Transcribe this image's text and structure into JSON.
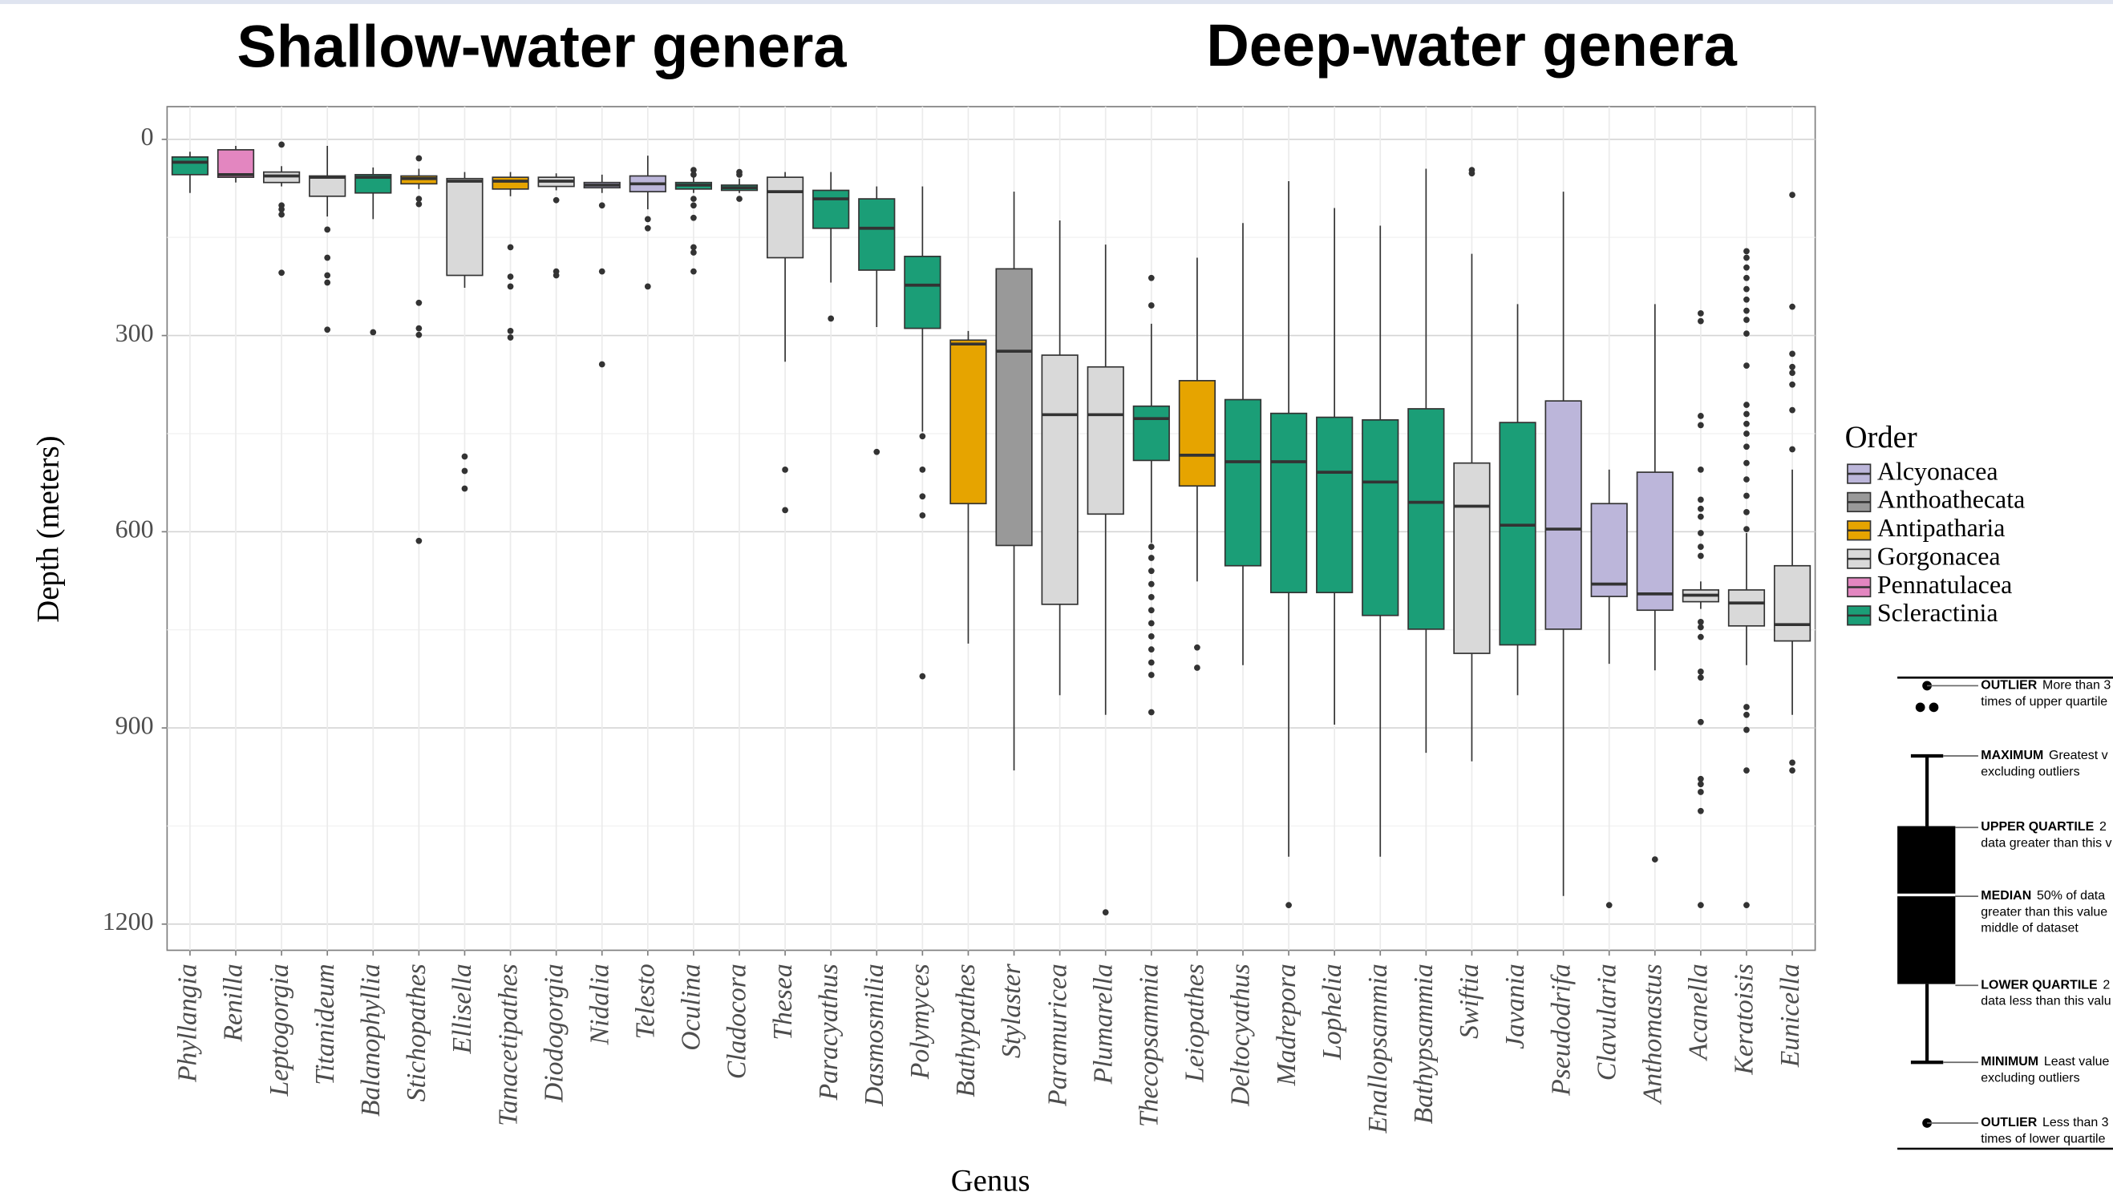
{
  "chart_data": {
    "type": "box",
    "annotations": [
      "Shallow-water genera",
      "Deep-water genera"
    ],
    "xlabel": "Genus",
    "ylabel": "Depth (meters)",
    "ylim": [
      -50,
      1240
    ],
    "y_reversed": true,
    "yticks": [
      0,
      300,
      600,
      900,
      1200
    ],
    "grid": true,
    "legend_title": "Order",
    "categories": [
      "Phyllangia",
      "Renilla",
      "Leptogorgia",
      "Titanideum",
      "Balanophyllia",
      "Stichopathes",
      "Ellisella",
      "Tanacetipathes",
      "Diodogorgia",
      "Nidalia",
      "Telesto",
      "Oculina",
      "Cladocora",
      "Thesea",
      "Paracyathus",
      "Dasmosmilia",
      "Polymyces",
      "Bathypathes",
      "Stylaster",
      "Paramuricea",
      "Plumarella",
      "Thecopsammia",
      "Leiopathes",
      "Deltocyathus",
      "Madrepora",
      "Lophelia",
      "Enallopsammia",
      "Bathypsammia",
      "Swiftia",
      "Javania",
      "Pseudodrifa",
      "Clavularia",
      "Anthomastus",
      "Acanella",
      "Keratoisis",
      "Eunicella"
    ],
    "series": [
      {
        "name": "Alcyonacea",
        "color": "#bcb6da",
        "values": [
          null,
          null,
          null,
          null,
          null,
          null,
          null,
          null,
          null,
          {
            "min": 54,
            "q1": 66,
            "median": 70,
            "q3": 74,
            "max": 82,
            "outliers": [
              101,
              202,
              344
            ]
          },
          {
            "min": 25,
            "q1": 56,
            "median": 68,
            "q3": 80,
            "max": 107,
            "outliers": [
              122,
              136,
              225
            ]
          },
          null,
          null,
          null,
          null,
          null,
          null,
          null,
          null,
          null,
          null,
          null,
          null,
          null,
          null,
          null,
          null,
          null,
          null,
          null,
          {
            "min": 80,
            "q1": 400,
            "median": 596,
            "q3": 749,
            "max": 1157,
            "outliers": []
          },
          {
            "min": 505,
            "q1": 557,
            "median": 680,
            "q3": 699,
            "max": 802,
            "outliers": [
              1171
            ]
          },
          {
            "min": 252,
            "q1": 509,
            "median": 695,
            "q3": 720,
            "max": 812,
            "outliers": [
              1101
            ]
          },
          null,
          null,
          null
        ]
      },
      {
        "name": "Anthoathecata",
        "color": "#999999",
        "values": [
          null,
          null,
          null,
          null,
          null,
          null,
          null,
          null,
          null,
          null,
          null,
          null,
          null,
          null,
          null,
          null,
          null,
          null,
          {
            "min": 80,
            "q1": 198,
            "median": 324,
            "q3": 621,
            "max": 965,
            "outliers": []
          },
          null,
          null,
          null,
          null,
          null,
          null,
          null,
          null,
          null,
          null,
          null,
          null,
          null,
          null,
          null,
          null,
          null
        ]
      },
      {
        "name": "Antipatharia",
        "color": "#e6a400",
        "values": [
          null,
          null,
          null,
          null,
          null,
          {
            "min": 45,
            "q1": 56,
            "median": 60,
            "q3": 68,
            "max": 76,
            "outliers": [
              29,
              91,
              99,
              250,
              289,
              299,
              614
            ]
          },
          null,
          {
            "min": 50,
            "q1": 58,
            "median": 64,
            "q3": 76,
            "max": 87,
            "outliers": [
              165,
              210,
              225,
              293,
              303
            ]
          },
          null,
          null,
          null,
          null,
          null,
          null,
          null,
          null,
          null,
          {
            "min": 293,
            "q1": 307,
            "median": 313,
            "q3": 557,
            "max": 771,
            "outliers": []
          },
          null,
          null,
          null,
          null,
          {
            "min": 181,
            "q1": 369,
            "median": 483,
            "q3": 530,
            "max": 676,
            "outliers": [
              777,
              808
            ]
          },
          null,
          null,
          null,
          null,
          null,
          null,
          null,
          null,
          null,
          null,
          null,
          null,
          null
        ]
      },
      {
        "name": "Gorgonacea",
        "color": "#d9d9d9",
        "values": [
          null,
          null,
          {
            "min": 41,
            "q1": 50,
            "median": 56,
            "q3": 66,
            "max": 72,
            "outliers": [
              8,
              101,
              107,
              115,
              204
            ]
          },
          {
            "min": 10,
            "q1": 56,
            "median": 58,
            "q3": 87,
            "max": 118,
            "outliers": [
              138,
              181,
              208,
              219,
              291
            ]
          },
          null,
          null,
          {
            "min": 50,
            "q1": 60,
            "median": 64,
            "q3": 208,
            "max": 227,
            "outliers": [
              485,
              507,
              534
            ]
          },
          null,
          {
            "min": 52,
            "q1": 58,
            "median": 64,
            "q3": 72,
            "max": 78,
            "outliers": [
              93,
              202,
              208
            ]
          },
          null,
          null,
          null,
          null,
          {
            "min": 50,
            "q1": 58,
            "median": 80,
            "q3": 181,
            "max": 340,
            "outliers": [
              505,
              567
            ]
          },
          null,
          null,
          null,
          null,
          null,
          {
            "min": 124,
            "q1": 330,
            "median": 421,
            "q3": 711,
            "max": 850,
            "outliers": []
          },
          {
            "min": 161,
            "q1": 348,
            "median": 421,
            "q3": 573,
            "max": 880,
            "outliers": [
              1182
            ]
          },
          null,
          null,
          null,
          null,
          null,
          null,
          null,
          {
            "min": 175,
            "q1": 495,
            "median": 561,
            "q3": 786,
            "max": 951,
            "outliers": [
              47,
              52
            ]
          },
          null,
          null,
          null,
          null,
          {
            "min": 676,
            "q1": 689,
            "median": 697,
            "q3": 707,
            "max": 718,
            "outliers": [
              266,
              278,
              423,
              437,
              505,
              551,
              565,
              577,
              602,
              623,
              637,
              738,
              746,
              761,
              814,
              823,
              891,
              978,
              986,
              998,
              1027,
              1171
            ]
          },
          {
            "min": 602,
            "q1": 689,
            "median": 709,
            "q3": 744,
            "max": 804,
            "outliers": [
              171,
              181,
              196,
              212,
              229,
              245,
              262,
              276,
              297,
              346,
              406,
              420,
              435,
              450,
              470,
              495,
              520,
              545,
              570,
              596,
              868,
              880,
              903,
              965,
              1171
            ]
          },
          {
            "min": 505,
            "q1": 652,
            "median": 742,
            "q3": 767,
            "max": 880,
            "outliers": [
              85,
              256,
              328,
              348,
              357,
              375,
              414,
              474,
              953,
              965
            ]
          }
        ]
      },
      {
        "name": "Pennatulacea",
        "color": "#e386c0",
        "values": [
          null,
          {
            "min": 10,
            "q1": 16,
            "median": 54,
            "q3": 58,
            "max": 66,
            "outliers": []
          },
          null,
          null,
          null,
          null,
          null,
          null,
          null,
          null,
          null,
          null,
          null,
          null,
          null,
          null,
          null,
          null,
          null,
          null,
          null,
          null,
          null,
          null,
          null,
          null,
          null,
          null,
          null,
          null,
          null,
          null,
          null,
          null,
          null,
          null
        ]
      },
      {
        "name": "Scleractinia",
        "color": "#1b9e77",
        "values": [
          {
            "min": 19,
            "q1": 27,
            "median": 35,
            "q3": 54,
            "max": 82,
            "outliers": []
          },
          null,
          null,
          null,
          {
            "min": 43,
            "q1": 54,
            "median": 58,
            "q3": 82,
            "max": 122,
            "outliers": [
              295
            ]
          },
          null,
          null,
          null,
          null,
          null,
          null,
          {
            "min": 56,
            "q1": 66,
            "median": 70,
            "q3": 76,
            "max": 82,
            "outliers": [
              47,
              54,
              91,
              101,
              120,
              165,
              173,
              202
            ]
          },
          {
            "min": 60,
            "q1": 70,
            "median": 74,
            "q3": 78,
            "max": 82,
            "outliers": [
              50,
              54,
              91
            ]
          },
          null,
          {
            "min": 50,
            "q1": 78,
            "median": 91,
            "q3": 136,
            "max": 219,
            "outliers": [
              274
            ]
          },
          {
            "min": 72,
            "q1": 91,
            "median": 136,
            "q3": 200,
            "max": 287,
            "outliers": [
              478
            ]
          },
          {
            "min": 72,
            "q1": 179,
            "median": 223,
            "q3": 289,
            "max": 447,
            "outliers": [
              454,
              505,
              546,
              575,
              821
            ]
          },
          null,
          null,
          null,
          null,
          {
            "min": 282,
            "q1": 408,
            "median": 427,
            "q3": 491,
            "max": 617,
            "outliers": [
              212,
              254,
              623,
              640,
              660,
              680,
              700,
              720,
              740,
              760,
              780,
              800,
              819,
              876
            ]
          },
          null,
          {
            "min": 128,
            "q1": 398,
            "median": 493,
            "q3": 652,
            "max": 804,
            "outliers": []
          },
          {
            "min": 64,
            "q1": 419,
            "median": 493,
            "q3": 693,
            "max": 1097,
            "outliers": [
              1171
            ]
          },
          {
            "min": 105,
            "q1": 425,
            "median": 509,
            "q3": 693,
            "max": 895,
            "outliers": []
          },
          {
            "min": 132,
            "q1": 429,
            "median": 524,
            "q3": 728,
            "max": 1097,
            "outliers": []
          },
          {
            "min": 45,
            "q1": 412,
            "median": 555,
            "q3": 749,
            "max": 938,
            "outliers": []
          },
          null,
          {
            "min": 252,
            "q1": 433,
            "median": 590,
            "q3": 773,
            "max": 850,
            "outliers": []
          },
          null,
          null,
          null,
          null,
          null,
          null
        ]
      }
    ]
  },
  "inset": {
    "items": [
      {
        "label": "OUTLIER",
        "lines": [
          "More than 3",
          "times of upper quartile"
        ]
      },
      {
        "label": "MAXIMUM",
        "lines": [
          "Greatest v",
          "excluding outliers"
        ]
      },
      {
        "label": "UPPER QUARTILE",
        "lines": [
          "2",
          "data greater than this v"
        ]
      },
      {
        "label": "MEDIAN",
        "lines": [
          "50% of data",
          "greater than this value",
          "middle of dataset"
        ]
      },
      {
        "label": "LOWER QUARTILE",
        "lines": [
          "2",
          "data less than this valu"
        ]
      },
      {
        "label": "MINIMUM",
        "lines": [
          "Least value",
          "excluding outliers"
        ]
      },
      {
        "label": "OUTLIER",
        "lines": [
          "Less than 3",
          "times of lower quartile"
        ]
      }
    ]
  }
}
